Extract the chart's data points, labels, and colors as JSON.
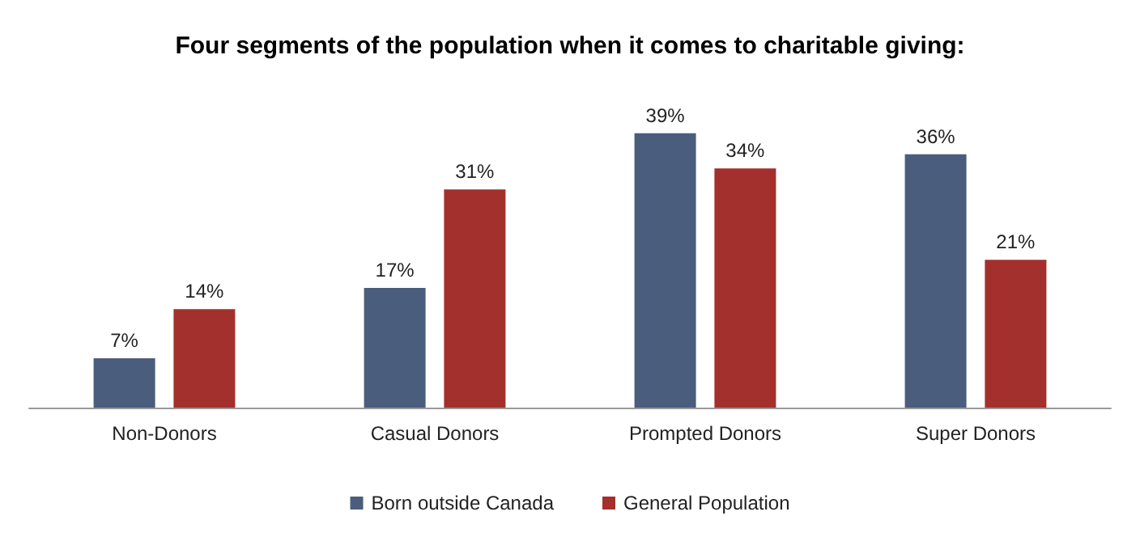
{
  "chart_data": {
    "type": "bar",
    "title": "Four segments of the population when it comes to charitable giving:",
    "categories": [
      "Non-Donors",
      "Casual Donors",
      "Prompted Donors",
      "Super Donors"
    ],
    "series": [
      {
        "name": "Born outside Canada",
        "color": "#4a5d7c",
        "values": [
          7,
          17,
          39,
          36
        ],
        "value_labels": [
          "7%",
          "17%",
          "39%",
          "36%"
        ]
      },
      {
        "name": "General Population",
        "color": "#a3302c",
        "values": [
          14,
          31,
          34,
          21
        ],
        "value_labels": [
          "14%",
          "31%",
          "34%",
          "21%"
        ]
      }
    ],
    "legend": "bottom"
  }
}
